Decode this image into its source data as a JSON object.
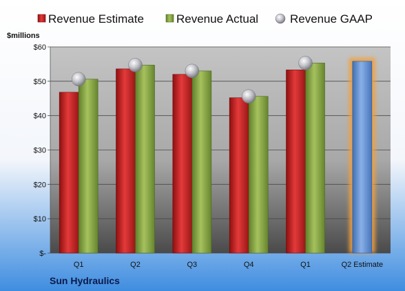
{
  "chart_data": {
    "type": "bar",
    "categories": [
      "Q1",
      "Q2",
      "Q3",
      "Q4",
      "Q1",
      "Q2 Estimate"
    ],
    "series": [
      {
        "name": "Revenue Estimate",
        "values": [
          46.8,
          53.6,
          52.0,
          45.2,
          53.3,
          null
        ],
        "color": "#cc2222"
      },
      {
        "name": "Revenue Actual",
        "values": [
          50.6,
          54.7,
          53.0,
          45.6,
          55.3,
          55.8
        ],
        "color": "#8fae4a"
      },
      {
        "name": "Revenue GAAP",
        "values": [
          50.6,
          54.7,
          53.0,
          45.6,
          55.3,
          null
        ],
        "color": "#b8b8c2"
      }
    ],
    "highlight": {
      "category": "Q2 Estimate",
      "color": "#6f9ad6",
      "glow": "#f0a040"
    },
    "ylabel": "$millions",
    "yticks": [
      "$-",
      "$10",
      "$20",
      "$30",
      "$40",
      "$50",
      "$60"
    ],
    "ylim": [
      0,
      60
    ],
    "grid": true,
    "legend_position": "top",
    "company": "Sun Hydraulics",
    "background": {
      "top": "#ffffff",
      "bottom": "#3f8de0"
    }
  }
}
